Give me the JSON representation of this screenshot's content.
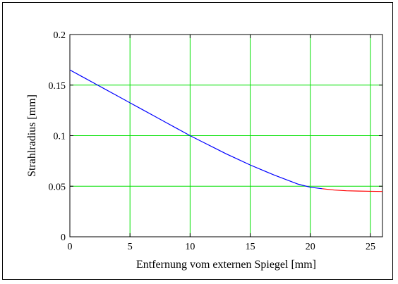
{
  "chart_data": {
    "type": "line",
    "title": "",
    "xlabel": "Entfernung vom externen Spiegel [mm]",
    "ylabel": "Strahlradius [mm]",
    "xlim": [
      0,
      26
    ],
    "ylim": [
      0,
      0.2
    ],
    "x_ticks": [
      0,
      5,
      10,
      15,
      20,
      25
    ],
    "y_ticks": [
      0,
      0.05,
      0.1,
      0.15,
      0.2
    ],
    "x_tick_labels": [
      "0",
      "5",
      "10",
      "15",
      "20",
      "25"
    ],
    "y_tick_labels": [
      "0",
      "0.05",
      "0.1",
      "0.15",
      "0.2"
    ],
    "grid": true,
    "grid_color": "#00e000",
    "series": [
      {
        "color": "#0000ff",
        "x": [
          0,
          1,
          2,
          3,
          4,
          5,
          6,
          7,
          8,
          9,
          10,
          11,
          12,
          13,
          14,
          15,
          16,
          17,
          18,
          19,
          20,
          21
        ],
        "y": [
          0.165,
          0.1585,
          0.152,
          0.1455,
          0.139,
          0.1325,
          0.126,
          0.1195,
          0.113,
          0.1065,
          0.1,
          0.094,
          0.088,
          0.082,
          0.0765,
          0.071,
          0.066,
          0.061,
          0.0565,
          0.052,
          0.049,
          0.0475
        ]
      },
      {
        "color": "#ff0000",
        "x": [
          21,
          22,
          23,
          24,
          25,
          26
        ],
        "y": [
          0.0475,
          0.0462,
          0.0455,
          0.0452,
          0.045,
          0.0448
        ]
      }
    ]
  }
}
